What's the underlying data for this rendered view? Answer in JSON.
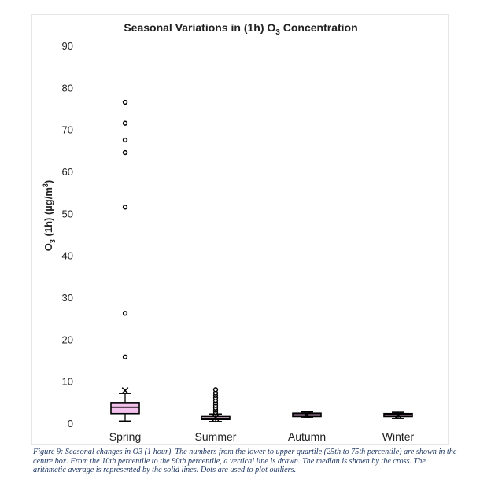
{
  "chart_data": {
    "type": "box",
    "title_prefix": "Seasonal Variations in (1h) O",
    "title_subscript": "3",
    "title_suffix": " Concentration",
    "ylabel_prefix": "O",
    "ylabel_subscript": "3",
    "ylabel_suffix": " (1h) (µg/m",
    "ylabel_superscript": "3",
    "ylabel_end": ")",
    "ylim": [
      0,
      90
    ],
    "yticks": [
      0,
      10,
      20,
      30,
      40,
      50,
      60,
      70,
      80,
      90
    ],
    "grid": false,
    "categories": [
      "Spring",
      "Summer",
      "Autumn",
      "Winter"
    ],
    "boxes": [
      {
        "category": "Spring",
        "whisker_low": 0.5,
        "q1": 2.3,
        "median": 3.8,
        "q3": 4.9,
        "whisker_high": 7.1,
        "mean": 7.8,
        "outliers": [
          15.8,
          26.2,
          51.5,
          64.5,
          67.5,
          71.5,
          76.5
        ],
        "color": "#f2c2ec"
      },
      {
        "category": "Summer",
        "whisker_low": 0.4,
        "q1": 0.9,
        "median": 1.1,
        "q3": 1.6,
        "whisker_high": 2.2,
        "mean": 1.3,
        "outliers": [
          2.6,
          3.1,
          3.6,
          4.2,
          4.8,
          5.4,
          6.0,
          6.6,
          7.2,
          8.0
        ],
        "color": "#f2c2ec"
      },
      {
        "category": "Autumn",
        "whisker_low": 1.3,
        "q1": 1.6,
        "median": 2.0,
        "q3": 2.4,
        "whisker_high": 2.7,
        "mean": 2.0,
        "outliers": [],
        "color": "#f2c2ec"
      },
      {
        "category": "Winter",
        "whisker_low": 1.1,
        "q1": 1.6,
        "median": 2.0,
        "q3": 2.3,
        "whisker_high": 2.6,
        "mean": 1.9,
        "outliers": [],
        "color": "#f2c2ec"
      }
    ]
  },
  "caption": {
    "text": "Figure 9: Seasonal changes in O3 (1 hour). The numbers from the lower to upper quartile (25th to 75th percentile) are shown in the centre box. From the 10th percentile to the 90th percentile, a vertical line is drawn. The median is shown by the cross. The arithmetic average is represented by the solid lines. Dots are used to plot outliers."
  }
}
